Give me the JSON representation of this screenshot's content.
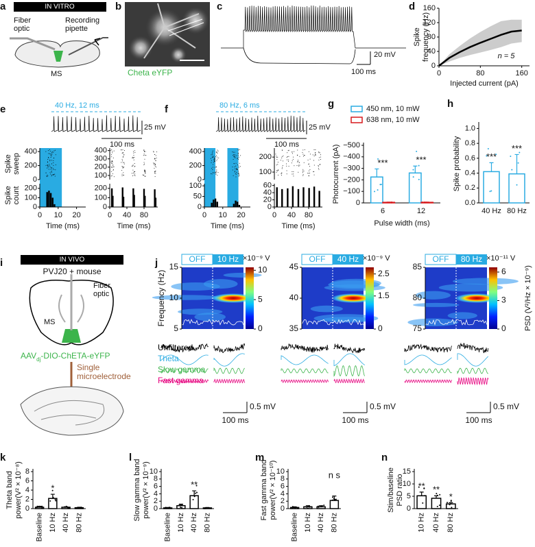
{
  "panels": {
    "a": {
      "letter": "a",
      "banner": "IN VITRO",
      "fiber_label": [
        "Fiber",
        "optic"
      ],
      "pipette_label": [
        "Recording",
        "pipette"
      ],
      "region": "MS"
    },
    "b": {
      "letter": "b",
      "label": "Cheta eYFP"
    },
    "c": {
      "letter": "c",
      "scale_v": "20 mV",
      "scale_t": "100 ms"
    },
    "d": {
      "letter": "d",
      "type": "line",
      "x": [
        0,
        20,
        40,
        60,
        80,
        100,
        120,
        140,
        160
      ],
      "values": [
        0,
        22,
        38,
        52,
        64,
        75,
        86,
        95,
        98
      ],
      "lower": [
        0,
        12,
        22,
        30,
        37,
        44,
        52,
        62,
        66
      ],
      "upper": [
        0,
        32,
        55,
        76,
        94,
        110,
        124,
        128,
        128
      ],
      "xlim": [
        0,
        175
      ],
      "ylim": [
        0,
        160
      ],
      "xticks": [
        0,
        80,
        160
      ],
      "yticks": [
        0,
        40,
        80,
        120,
        160
      ],
      "xlabel": "Injected current (pA)",
      "ylabel": [
        "Spike",
        "frequency (Hz)"
      ],
      "note": "n = 5"
    },
    "e": {
      "letter": "e",
      "stim": "40 Hz, 12 ms",
      "scale_v": "25 mV",
      "scale_t": "100 ms",
      "sweep_label": [
        "Spike",
        "sweep"
      ],
      "count_label": [
        "Spike",
        "count"
      ],
      "xlabel": "Time (ms)",
      "left": {
        "xlim": [
          0,
          25
        ],
        "xticks": [
          0,
          10,
          20
        ],
        "light_on": [
          [
            0,
            12
          ]
        ],
        "sweep_ylim": [
          0,
          450
        ],
        "sweep_yticks": [
          0,
          200,
          400
        ],
        "count_ylim": [
          0,
          250
        ],
        "count_yticks": [
          0,
          100,
          200
        ],
        "type": "histogram",
        "x": [
          4,
          5,
          6,
          7,
          8
        ],
        "values": [
          160,
          175,
          150,
          100,
          30
        ]
      },
      "right": {
        "xlim": [
          0,
          112
        ],
        "xticks": [
          0,
          40,
          80
        ],
        "sweep_ylim": [
          50,
          430
        ],
        "sweep_yticks": [
          100,
          200,
          300,
          400
        ],
        "count_ylim": [
          0,
          250
        ],
        "count_yticks": [
          0,
          100,
          200
        ],
        "type": "histogram",
        "x": [
          5,
          7,
          30,
          32,
          55,
          57,
          80,
          82,
          105,
          107
        ],
        "values": [
          200,
          120,
          210,
          110,
          200,
          130,
          195,
          120,
          190,
          100
        ]
      }
    },
    "f": {
      "letter": "f",
      "stim": "80 Hz, 6 ms",
      "scale_v": "25 mV",
      "scale_t": "100 ms",
      "xlabel": "Time (ms)",
      "left": {
        "xlim": [
          0,
          25
        ],
        "xticks": [
          0,
          10,
          20
        ],
        "light_on": [
          [
            0,
            6
          ],
          [
            12.5,
            18.5
          ]
        ],
        "sweep_ylim": [
          0,
          450
        ],
        "sweep_yticks": [
          0,
          200,
          400
        ],
        "count_ylim": [
          0,
          110
        ],
        "count_yticks": [
          0,
          50,
          100
        ],
        "type": "histogram",
        "x": [
          4,
          5,
          6,
          7,
          16,
          17,
          18,
          19
        ],
        "values": [
          20,
          35,
          40,
          25,
          15,
          30,
          25,
          10
        ]
      },
      "right": {
        "xlim": [
          0,
          112
        ],
        "xticks": [
          0,
          40,
          80
        ],
        "sweep_ylim": [
          50,
          260
        ],
        "sweep_yticks": [
          100,
          200
        ],
        "count_ylim": [
          0,
          65
        ],
        "count_yticks": [
          0,
          20,
          40,
          60
        ],
        "type": "histogram",
        "x": [
          6,
          18,
          31,
          43,
          56,
          68,
          81,
          93,
          105
        ],
        "values": [
          55,
          50,
          52,
          58,
          50,
          55,
          53,
          57,
          45
        ]
      }
    },
    "g": {
      "letter": "g",
      "type": "bar",
      "categories": [
        "6",
        "12"
      ],
      "series": [
        {
          "name": "450 nm, 10 mW",
          "color": "#29abe2",
          "values": [
            -225,
            -260
          ],
          "errors": [
            70,
            60
          ]
        },
        {
          "name": "638 nm, 10 mW",
          "color": "#d7191c",
          "values": [
            -5,
            -5
          ],
          "errors": [
            2,
            2
          ]
        }
      ],
      "ylim": [
        0,
        -500
      ],
      "yticks": [
        {
          "value": -500,
          "label": "−500"
        },
        {
          "value": -400,
          "label": "−400"
        },
        {
          "value": -300,
          "label": "−300"
        },
        {
          "value": -200,
          "label": "−200"
        },
        {
          "value": -100,
          "label": "−100"
        },
        0
      ],
      "ylabel": [
        "Photocurrent (pA)"
      ],
      "xlabel": "Pulse width (ms)",
      "stars": [
        "***",
        "***"
      ]
    },
    "h": {
      "letter": "h",
      "type": "bar",
      "categories": [
        "40 Hz",
        "80 Hz"
      ],
      "series": [
        {
          "color": "#29abe2",
          "values": [
            0.42,
            0.39
          ],
          "errors": [
            0.12,
            0.26
          ]
        }
      ],
      "ylim": [
        0,
        1.05
      ],
      "yticks": [
        {
          "value": 0,
          "label": "0.0"
        },
        0.2,
        0.4,
        0.6,
        0.8,
        {
          "value": 1,
          "label": "1.0"
        }
      ],
      "ylabel": [
        "Spike probability"
      ],
      "stars": [
        "***",
        "***"
      ]
    },
    "i": {
      "letter": "i",
      "banner": "IN VIVO",
      "mouse": "PVJ20 + mouse",
      "fiber_label": [
        "Fiber",
        "optic"
      ],
      "region": "MS",
      "virus": [
        "AAV",
        "dj",
        "-DIO-ChETA-eYFP"
      ],
      "electrode": [
        "Single",
        "microelectrode"
      ]
    },
    "j": {
      "letter": "j",
      "ylabel": "Frequency (Hz)",
      "cbar_label": "PSD (V²/Hz × 10⁻⁹)",
      "trace_labels": [
        "Unfiltered",
        "Theta",
        "Slow gamma",
        "Fast gamma"
      ],
      "scale_v": "0.5 mV",
      "scale_t": "100 ms",
      "spectrograms": [
        {
          "off": "OFF",
          "on": "10 Hz",
          "ylim": [
            5,
            15
          ],
          "yticks": [
            5,
            10,
            15
          ],
          "cbar_unit": "×10⁻⁹ V",
          "cbar_lim": [
            0,
            10.5
          ],
          "cbar_ticks": [
            0,
            5,
            10
          ]
        },
        {
          "off": "OFF",
          "on": "40 Hz",
          "ylim": [
            35,
            45
          ],
          "yticks": [
            35,
            40,
            45
          ],
          "cbar_unit": "×10⁻⁹ V",
          "cbar_lim": [
            0,
            2.8
          ],
          "cbar_ticks": [
            0,
            1.5,
            2.5
          ]
        },
        {
          "off": "OFF",
          "on": "80 Hz",
          "ylim": [
            75,
            85
          ],
          "yticks": [
            75,
            80,
            85
          ],
          "cbar_unit": "×10⁻¹¹ V",
          "cbar_lim": [
            0,
            6.5
          ],
          "cbar_ticks": [
            0,
            3,
            6
          ]
        }
      ]
    },
    "k": {
      "letter": "k",
      "type": "bar",
      "categories": [
        "Baseline",
        "10 Hz",
        "40 Hz",
        "80 Hz"
      ],
      "series": [
        {
          "color": "#000000",
          "values": [
            0.3,
            2.2,
            0.3,
            0.2
          ],
          "errors": [
            0.2,
            0.9,
            0.1,
            0.1
          ]
        }
      ],
      "ylim": [
        0,
        8
      ],
      "yticks": [
        0,
        2,
        4,
        6,
        8
      ],
      "ylabel": [
        "Theta band",
        "power(V² × 10⁻⁸)"
      ],
      "stars": [
        null,
        "*",
        null,
        null
      ]
    },
    "l": {
      "letter": "l",
      "type": "bar",
      "categories": [
        "Baseline",
        "10 Hz",
        "40 Hz",
        "80 Hz"
      ],
      "series": [
        {
          "color": "#000000",
          "values": [
            0.2,
            0.8,
            3.5,
            0.2
          ],
          "errors": [
            0.1,
            0.4,
            1.3,
            0.1
          ]
        }
      ],
      "ylim": [
        0,
        10
      ],
      "yticks": [
        0,
        2,
        4,
        6,
        8,
        10
      ],
      "ylabel": [
        "Slow gamma band",
        "power(V² × 10⁻⁹)"
      ],
      "stars": [
        null,
        null,
        "**",
        null
      ]
    },
    "m": {
      "letter": "m",
      "type": "bar",
      "categories": [
        "Baseline",
        "10 Hz",
        "40 Hz",
        "80 Hz"
      ],
      "series": [
        {
          "color": "#000000",
          "values": [
            0.3,
            0.5,
            0.5,
            2.2
          ],
          "errors": [
            0.2,
            0.3,
            0.3,
            1.2
          ]
        }
      ],
      "ylim": [
        0,
        10
      ],
      "yticks": [
        0,
        2,
        4,
        6,
        8,
        10
      ],
      "ylabel": [
        "Fast gamma  band",
        "power(V² × 10⁻¹⁰)"
      ],
      "stars": [
        null,
        null,
        null,
        "n s"
      ]
    },
    "n": {
      "letter": "n",
      "type": "bar",
      "categories": [
        "10 Hz",
        "40 Hz",
        "80 Hz"
      ],
      "series": [
        {
          "color": "#000000",
          "values": [
            5.2,
            4.2,
            1.9
          ],
          "errors": [
            1.5,
            1.0,
            0.5
          ]
        }
      ],
      "ylim": [
        0,
        15
      ],
      "yticks": [
        0,
        5,
        10,
        15
      ],
      "ylabel": [
        "Stim/baseline",
        "PSD ratio"
      ],
      "stars": [
        "**",
        "**",
        "*"
      ]
    }
  }
}
